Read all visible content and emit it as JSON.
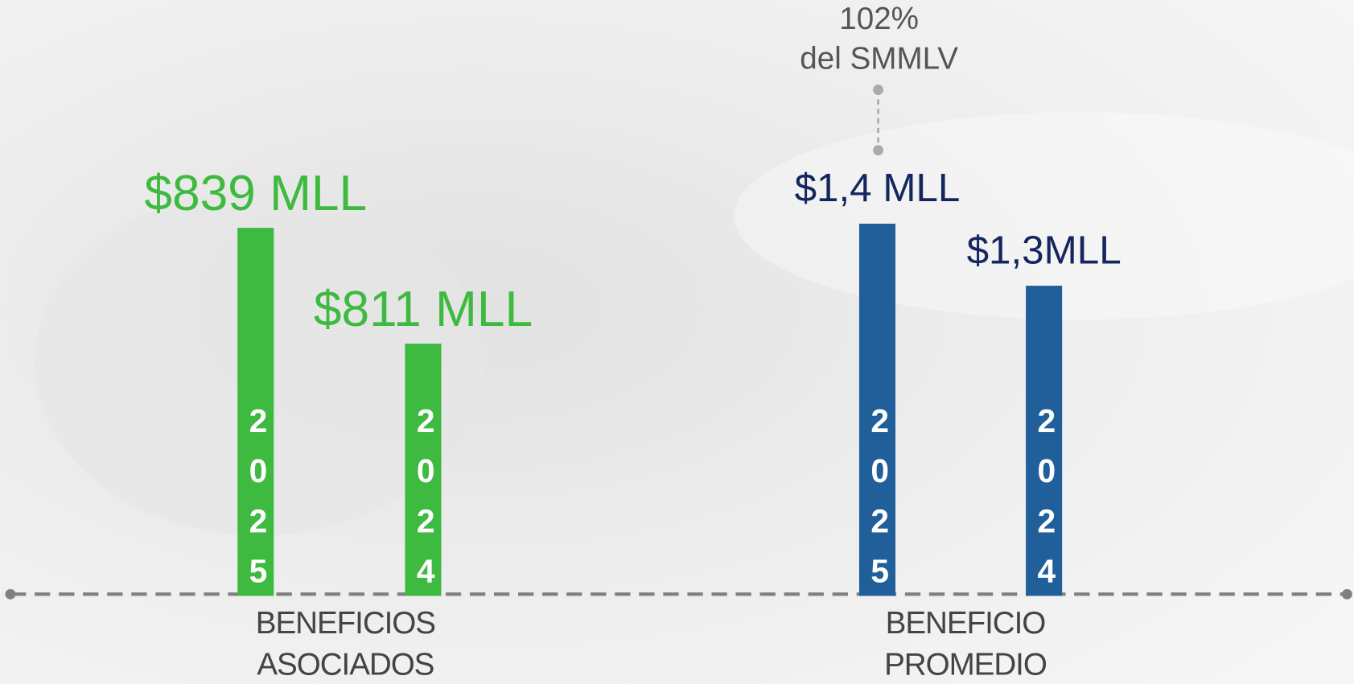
{
  "chart_data": [
    {
      "type": "bar",
      "categories": [
        "2025",
        "2024"
      ],
      "values": [
        839,
        811
      ],
      "value_labels": [
        "$839 MLL",
        "$811 MLL"
      ],
      "color": "#3dba3f",
      "label_color": "#3dba3f",
      "ylim": [
        750,
        840
      ],
      "xlabel": [
        "BENEFICIOS",
        "ASOCIADOS"
      ]
    },
    {
      "type": "bar",
      "categories": [
        "2025",
        "2024"
      ],
      "values": [
        1.4,
        1.3
      ],
      "value_labels": [
        "$1,4 MLL",
        "$1,3MLL"
      ],
      "color": "#215f9a",
      "label_color": "#13265e",
      "ylim": [
        0.8,
        1.4
      ],
      "xlabel": [
        "BENEFICIO",
        "PROMEDIO"
      ],
      "annotation": [
        "102%",
        "del SMMLV"
      ]
    }
  ]
}
